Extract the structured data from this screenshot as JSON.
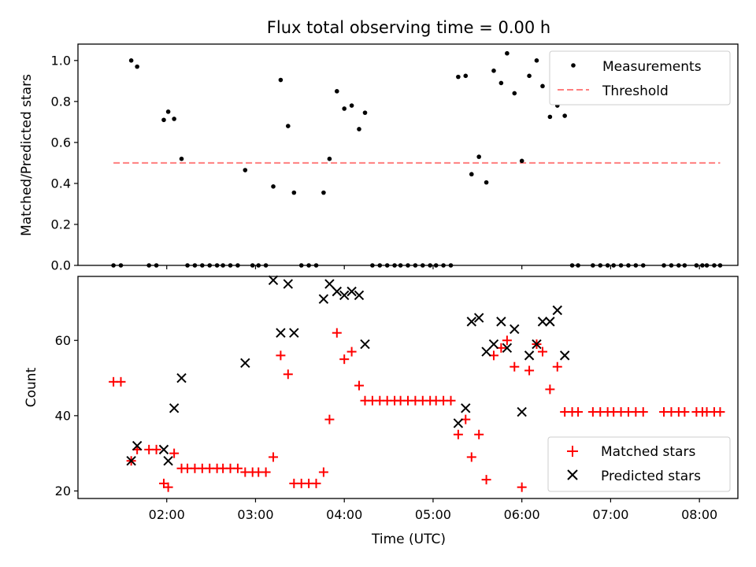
{
  "figure": {
    "title": "Flux total observing time = 0.00 h",
    "xlabel": "Time (UTC)"
  },
  "chart_data": [
    {
      "type": "scatter",
      "title": "Flux total observing time = 0.00 h",
      "xlabel": "",
      "ylabel": "Matched/Predicted stars",
      "xlim": [
        "01:00",
        "08:26"
      ],
      "ylim": [
        0,
        1.08
      ],
      "yticks": [
        "0.0",
        "0.2",
        "0.4",
        "0.6",
        "0.8",
        "1.0"
      ],
      "grid": false,
      "legend": "top-right",
      "series": [
        {
          "name": "Measurements",
          "marker": "dot",
          "color": "#000000",
          "points": [
            [
              "01:24",
              0
            ],
            [
              "01:29",
              0
            ],
            [
              "01:36",
              1.0
            ],
            [
              "01:40",
              0.97
            ],
            [
              "01:48",
              0
            ],
            [
              "01:53",
              0
            ],
            [
              "01:58",
              0.71
            ],
            [
              "02:01",
              0.75
            ],
            [
              "02:05",
              0.715
            ],
            [
              "02:10",
              0.52
            ],
            [
              "02:14",
              0
            ],
            [
              "02:19",
              0
            ],
            [
              "02:24",
              0
            ],
            [
              "02:29",
              0
            ],
            [
              "02:34",
              0
            ],
            [
              "02:38",
              0
            ],
            [
              "02:43",
              0
            ],
            [
              "02:48",
              0
            ],
            [
              "02:53",
              0.465
            ],
            [
              "02:58",
              0
            ],
            [
              "03:02",
              0
            ],
            [
              "03:07",
              0
            ],
            [
              "03:12",
              0.385
            ],
            [
              "03:17",
              0.905
            ],
            [
              "03:22",
              0.68
            ],
            [
              "03:26",
              0.355
            ],
            [
              "03:31",
              0
            ],
            [
              "03:36",
              0
            ],
            [
              "03:41",
              0
            ],
            [
              "03:46",
              0.355
            ],
            [
              "03:50",
              0.52
            ],
            [
              "03:55",
              0.85
            ],
            [
              "04:00",
              0.765
            ],
            [
              "04:05",
              0.78
            ],
            [
              "04:10",
              0.665
            ],
            [
              "04:14",
              0.745
            ],
            [
              "04:19",
              0
            ],
            [
              "04:24",
              0
            ],
            [
              "04:29",
              0
            ],
            [
              "04:34",
              0
            ],
            [
              "04:38",
              0
            ],
            [
              "04:43",
              0
            ],
            [
              "04:48",
              0
            ],
            [
              "04:53",
              0
            ],
            [
              "04:58",
              0
            ],
            [
              "05:02",
              0
            ],
            [
              "05:07",
              0
            ],
            [
              "05:12",
              0
            ],
            [
              "05:17",
              0.92
            ],
            [
              "05:22",
              0.925
            ],
            [
              "05:26",
              0.445
            ],
            [
              "05:31",
              0.53
            ],
            [
              "05:36",
              0.405
            ],
            [
              "05:41",
              0.95
            ],
            [
              "05:46",
              0.89
            ],
            [
              "05:50",
              1.035
            ],
            [
              "05:55",
              0.84
            ],
            [
              "06:00",
              0.51
            ],
            [
              "06:05",
              0.925
            ],
            [
              "06:10",
              1.0
            ],
            [
              "06:14",
              0.875
            ],
            [
              "06:19",
              0.725
            ],
            [
              "06:24",
              0.78
            ],
            [
              "06:29",
              0.73
            ],
            [
              "06:34",
              0
            ],
            [
              "06:38",
              0
            ],
            [
              "06:48",
              0
            ],
            [
              "06:53",
              0
            ],
            [
              "06:58",
              0
            ],
            [
              "07:02",
              0
            ],
            [
              "07:07",
              0
            ],
            [
              "07:12",
              0
            ],
            [
              "07:17",
              0
            ],
            [
              "07:22",
              0
            ],
            [
              "07:36",
              0
            ],
            [
              "07:41",
              0
            ],
            [
              "07:46",
              0
            ],
            [
              "07:50",
              0
            ],
            [
              "07:58",
              0
            ],
            [
              "08:02",
              0
            ],
            [
              "08:05",
              0
            ],
            [
              "08:10",
              0
            ],
            [
              "08:14",
              0
            ]
          ]
        },
        {
          "name": "Threshold",
          "marker": "dashed-line",
          "color": "#ff7f7f",
          "points": [
            [
              "01:24",
              0.5
            ],
            [
              "08:14",
              0.5
            ]
          ]
        }
      ]
    },
    {
      "type": "scatter",
      "title": "",
      "xlabel": "Time (UTC)",
      "ylabel": "Count",
      "xlim": [
        "01:00",
        "08:26"
      ],
      "ylim": [
        18,
        77
      ],
      "xticks": [
        "02:00",
        "03:00",
        "04:00",
        "05:00",
        "06:00",
        "07:00",
        "08:00"
      ],
      "yticks": [
        "20",
        "40",
        "60"
      ],
      "grid": false,
      "legend": "bottom-right",
      "series": [
        {
          "name": "Matched stars",
          "marker": "plus",
          "color": "#ff0000",
          "points": [
            [
              "01:24",
              49
            ],
            [
              "01:29",
              49
            ],
            [
              "01:36",
              28
            ],
            [
              "01:40",
              31
            ],
            [
              "01:48",
              31
            ],
            [
              "01:53",
              31
            ],
            [
              "01:58",
              22
            ],
            [
              "02:01",
              21
            ],
            [
              "02:05",
              30
            ],
            [
              "02:10",
              26
            ],
            [
              "02:14",
              26
            ],
            [
              "02:19",
              26
            ],
            [
              "02:24",
              26
            ],
            [
              "02:29",
              26
            ],
            [
              "02:34",
              26
            ],
            [
              "02:38",
              26
            ],
            [
              "02:43",
              26
            ],
            [
              "02:48",
              26
            ],
            [
              "02:53",
              25
            ],
            [
              "02:58",
              25
            ],
            [
              "03:02",
              25
            ],
            [
              "03:07",
              25
            ],
            [
              "03:12",
              29
            ],
            [
              "03:17",
              56
            ],
            [
              "03:22",
              51
            ],
            [
              "03:26",
              22
            ],
            [
              "03:31",
              22
            ],
            [
              "03:36",
              22
            ],
            [
              "03:41",
              22
            ],
            [
              "03:46",
              25
            ],
            [
              "03:50",
              39
            ],
            [
              "03:55",
              62
            ],
            [
              "04:00",
              55
            ],
            [
              "04:05",
              57
            ],
            [
              "04:10",
              48
            ],
            [
              "04:14",
              44
            ],
            [
              "04:19",
              44
            ],
            [
              "04:24",
              44
            ],
            [
              "04:29",
              44
            ],
            [
              "04:34",
              44
            ],
            [
              "04:38",
              44
            ],
            [
              "04:43",
              44
            ],
            [
              "04:48",
              44
            ],
            [
              "04:53",
              44
            ],
            [
              "04:58",
              44
            ],
            [
              "05:02",
              44
            ],
            [
              "05:07",
              44
            ],
            [
              "05:12",
              44
            ],
            [
              "05:17",
              35
            ],
            [
              "05:22",
              39
            ],
            [
              "05:26",
              29
            ],
            [
              "05:31",
              35
            ],
            [
              "05:36",
              23
            ],
            [
              "05:41",
              56
            ],
            [
              "05:46",
              58
            ],
            [
              "05:50",
              60
            ],
            [
              "05:55",
              53
            ],
            [
              "06:00",
              21
            ],
            [
              "06:05",
              52
            ],
            [
              "06:10",
              59
            ],
            [
              "06:14",
              57
            ],
            [
              "06:19",
              47
            ],
            [
              "06:24",
              53
            ],
            [
              "06:29",
              41
            ],
            [
              "06:34",
              41
            ],
            [
              "06:38",
              41
            ],
            [
              "06:48",
              41
            ],
            [
              "06:53",
              41
            ],
            [
              "06:58",
              41
            ],
            [
              "07:02",
              41
            ],
            [
              "07:07",
              41
            ],
            [
              "07:12",
              41
            ],
            [
              "07:17",
              41
            ],
            [
              "07:22",
              41
            ],
            [
              "07:36",
              41
            ],
            [
              "07:41",
              41
            ],
            [
              "07:46",
              41
            ],
            [
              "07:50",
              41
            ],
            [
              "07:58",
              41
            ],
            [
              "08:02",
              41
            ],
            [
              "08:05",
              41
            ],
            [
              "08:10",
              41
            ],
            [
              "08:14",
              41
            ]
          ]
        },
        {
          "name": "Predicted stars",
          "marker": "x",
          "color": "#000000",
          "points": [
            [
              "01:36",
              28
            ],
            [
              "01:40",
              32
            ],
            [
              "01:58",
              31
            ],
            [
              "02:01",
              28
            ],
            [
              "02:05",
              42
            ],
            [
              "02:10",
              50
            ],
            [
              "02:53",
              54
            ],
            [
              "03:12",
              76
            ],
            [
              "03:17",
              62
            ],
            [
              "03:22",
              75
            ],
            [
              "03:26",
              62
            ],
            [
              "03:46",
              71
            ],
            [
              "03:50",
              75
            ],
            [
              "03:55",
              73
            ],
            [
              "04:00",
              72
            ],
            [
              "04:05",
              73
            ],
            [
              "04:10",
              72
            ],
            [
              "04:14",
              59
            ],
            [
              "05:17",
              38
            ],
            [
              "05:22",
              42
            ],
            [
              "05:26",
              65
            ],
            [
              "05:31",
              66
            ],
            [
              "05:36",
              57
            ],
            [
              "05:41",
              59
            ],
            [
              "05:46",
              65
            ],
            [
              "05:50",
              58
            ],
            [
              "05:55",
              63
            ],
            [
              "06:00",
              41
            ],
            [
              "06:05",
              56
            ],
            [
              "06:10",
              59
            ],
            [
              "06:14",
              65
            ],
            [
              "06:19",
              65
            ],
            [
              "06:24",
              68
            ],
            [
              "06:29",
              56
            ]
          ]
        }
      ]
    }
  ]
}
